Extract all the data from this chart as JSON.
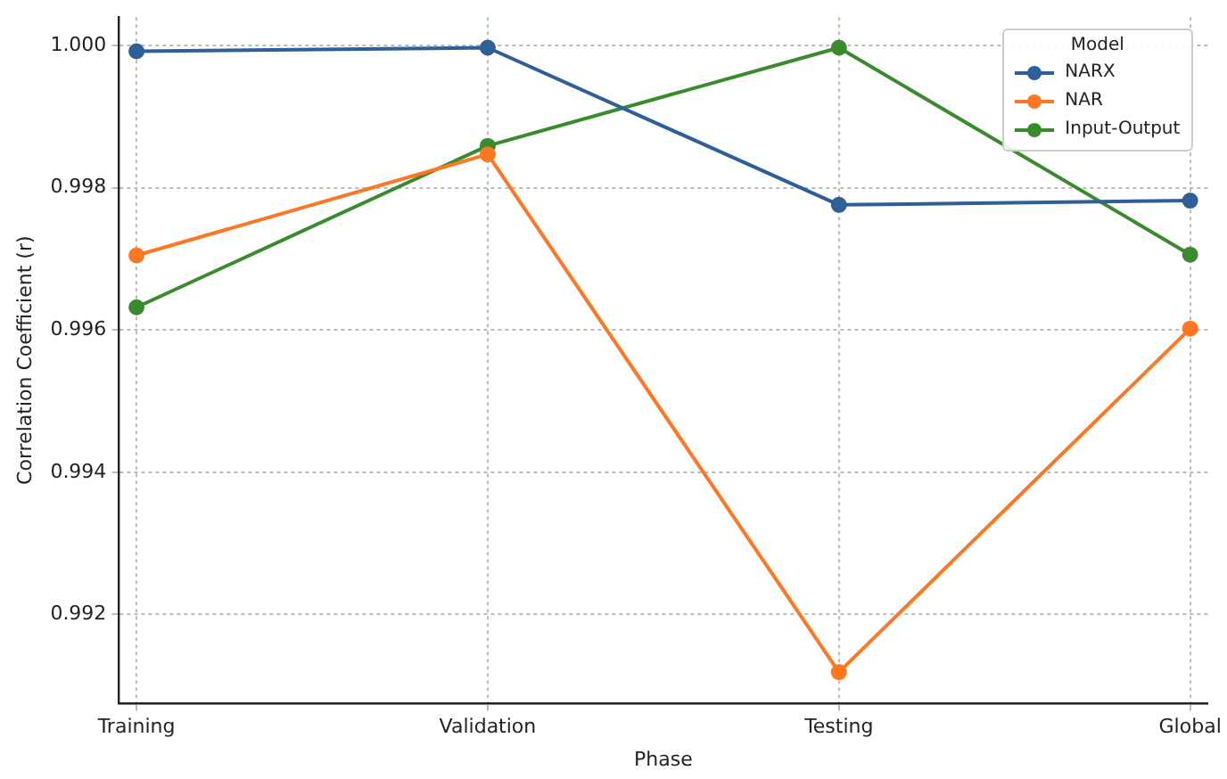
{
  "chart_data": {
    "type": "line",
    "xlabel": "Phase",
    "ylabel": "Correlation Coefficient (r)",
    "legend_title": "Model",
    "categories": [
      "Training",
      "Validation",
      "Testing",
      "Global"
    ],
    "series": [
      {
        "name": "NARX",
        "color": "#2f5f98",
        "values": [
          0.99992,
          0.99997,
          0.99776,
          0.99782
        ]
      },
      {
        "name": "NAR",
        "color": "#ff7722",
        "values": [
          0.99705,
          0.99847,
          0.99119,
          0.99602
        ]
      },
      {
        "name": "Input-Output",
        "color": "#3a8a2e",
        "values": [
          0.99632,
          0.99859,
          0.99997,
          0.99706
        ]
      }
    ],
    "ylim": [
      0.99075,
      1.0004
    ],
    "yticks": [
      0.992,
      0.994,
      0.996,
      0.998,
      {
        "value": 1.0,
        "label": "1.000"
      }
    ],
    "grid": true,
    "legend": "top right",
    "marker": "circle",
    "line_style": "solid"
  }
}
